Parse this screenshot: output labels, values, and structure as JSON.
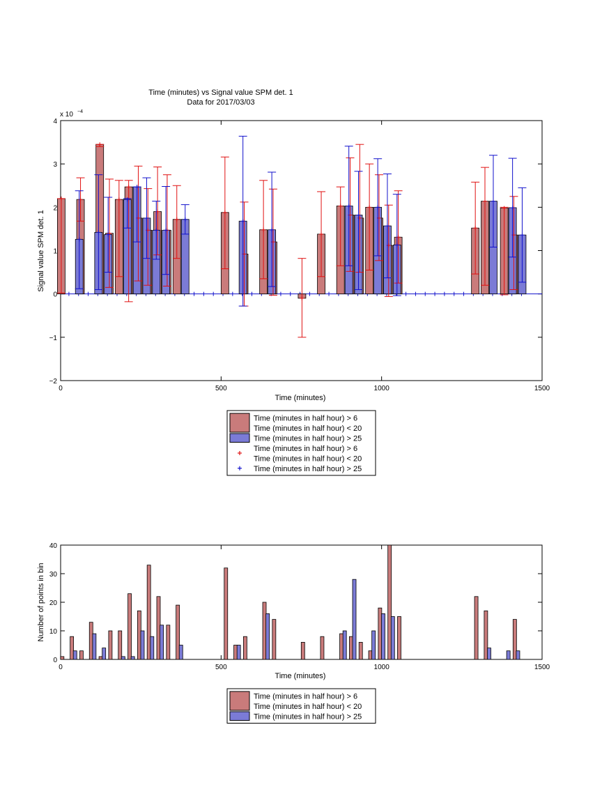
{
  "colors": {
    "red_fill": "#c97b7b",
    "blue_fill": "#7b7bd6",
    "red_line": "#e01010",
    "blue_line": "#1010cc",
    "axis": "#000000"
  },
  "chart_data": [
    {
      "type": "bar",
      "title": "Time (minutes) vs Signal value SPM det. 1",
      "subtitle": "Data for 2017/03/03",
      "xlabel": "Time (minutes)",
      "ylabel": "Signal value SPM det. 1",
      "exponent_label": "x 10",
      "exponent_power": "−4",
      "xlim": [
        0,
        1500
      ],
      "ylim": [
        -2,
        4
      ],
      "xticks": [
        0,
        500,
        1000,
        1500
      ],
      "yticks": [
        -2,
        -1,
        0,
        1,
        2,
        3,
        4
      ],
      "ytick_labels": [
        "−2",
        "−1",
        "0",
        "1",
        "2",
        "3",
        "4"
      ],
      "series": [
        {
          "name": "Time (minutes in half hour) > 6\nTime (minutes in half hour) < 20",
          "color": "#c97b7b",
          "points": [
            {
              "x": 15,
              "y": 2.2,
              "lo": 0.02,
              "hi": 2.2
            },
            {
              "x": 75,
              "y": 2.18,
              "lo": 1.68,
              "hi": 2.68
            },
            {
              "x": 135,
              "y": 3.45,
              "lo": 3.4,
              "hi": 3.45
            },
            {
              "x": 165,
              "y": 1.4,
              "lo": 0.15,
              "hi": 2.65
            },
            {
              "x": 195,
              "y": 2.18,
              "lo": 0.4,
              "hi": 2.62
            },
            {
              "x": 225,
              "y": 2.47,
              "lo": -0.18,
              "hi": 2.62
            },
            {
              "x": 255,
              "y": 1.75,
              "lo": 0.3,
              "hi": 2.95
            },
            {
              "x": 285,
              "y": 1.47,
              "lo": 0.2,
              "hi": 2.43
            },
            {
              "x": 315,
              "y": 1.9,
              "lo": 0.9,
              "hi": 2.93
            },
            {
              "x": 345,
              "y": 1.47,
              "lo": 0.18,
              "hi": 2.75
            },
            {
              "x": 375,
              "y": 1.72,
              "lo": 0.82,
              "hi": 2.5
            },
            {
              "x": 525,
              "y": 1.88,
              "lo": 0.58,
              "hi": 3.16
            },
            {
              "x": 585,
              "y": 0.92,
              "lo": -0.28,
              "hi": 2.12
            },
            {
              "x": 645,
              "y": 1.48,
              "lo": 0.35,
              "hi": 2.62
            },
            {
              "x": 675,
              "y": 1.2,
              "lo": -0.03,
              "hi": 2.42
            },
            {
              "x": 765,
              "y": -0.1,
              "lo": -1.0,
              "hi": 0.82
            },
            {
              "x": 825,
              "y": 1.38,
              "lo": 0.4,
              "hi": 2.36
            },
            {
              "x": 885,
              "y": 2.03,
              "lo": 0.65,
              "hi": 2.47
            },
            {
              "x": 915,
              "y": 1.82,
              "lo": 0.52,
              "hi": 3.14
            },
            {
              "x": 945,
              "y": 1.75,
              "lo": 0.5,
              "hi": 3.45
            },
            {
              "x": 975,
              "y": 2.0,
              "lo": 0.55,
              "hi": 3.0
            },
            {
              "x": 1005,
              "y": 1.75,
              "lo": 0.77,
              "hi": 2.75
            },
            {
              "x": 1035,
              "y": 1.12,
              "lo": -0.06,
              "hi": 2.05
            },
            {
              "x": 1065,
              "y": 1.31,
              "lo": 0.25,
              "hi": 2.38
            },
            {
              "x": 1305,
              "y": 1.52,
              "lo": 0.46,
              "hi": 2.58
            },
            {
              "x": 1335,
              "y": 2.14,
              "lo": 0.2,
              "hi": 2.92
            },
            {
              "x": 1395,
              "y": 1.98,
              "lo": -0.02,
              "hi": 2.0
            },
            {
              "x": 1425,
              "y": 1.36,
              "lo": 0.1,
              "hi": 2.25
            }
          ]
        },
        {
          "name": "Time (minutes in half hour) > 25",
          "color": "#7b7bd6",
          "points": [
            {
              "x": 45,
              "y": 1.26,
              "lo": 0.12,
              "hi": 2.38
            },
            {
              "x": 105,
              "y": 1.42,
              "lo": 0.1,
              "hi": 2.75
            },
            {
              "x": 135,
              "y": 1.37,
              "lo": 0.5,
              "hi": 2.23
            },
            {
              "x": 195,
              "y": 2.18,
              "lo": 1.52,
              "hi": 2.2
            },
            {
              "x": 225,
              "y": 2.47,
              "lo": 1.2,
              "hi": 2.47
            },
            {
              "x": 255,
              "y": 1.75,
              "lo": 0.82,
              "hi": 2.68
            },
            {
              "x": 285,
              "y": 1.47,
              "lo": 0.8,
              "hi": 2.14
            },
            {
              "x": 315,
              "y": 1.47,
              "lo": 0.45,
              "hi": 2.48
            },
            {
              "x": 375,
              "y": 1.72,
              "lo": 1.38,
              "hi": 2.06
            },
            {
              "x": 555,
              "y": 1.68,
              "lo": -0.28,
              "hi": 3.64
            },
            {
              "x": 645,
              "y": 1.48,
              "lo": 0.17,
              "hi": 2.81
            },
            {
              "x": 885,
              "y": 2.03,
              "lo": 0.65,
              "hi": 3.41
            },
            {
              "x": 915,
              "y": 1.82,
              "lo": 0.1,
              "hi": 2.83
            },
            {
              "x": 975,
              "y": 2.0,
              "lo": 0.88,
              "hi": 3.12
            },
            {
              "x": 1005,
              "y": 1.57,
              "lo": 0.37,
              "hi": 2.77
            },
            {
              "x": 1035,
              "y": 1.13,
              "lo": -0.04,
              "hi": 2.3
            },
            {
              "x": 1335,
              "y": 2.14,
              "lo": 1.08,
              "hi": 3.2
            },
            {
              "x": 1395,
              "y": 1.99,
              "lo": 0.85,
              "hi": 3.13
            },
            {
              "x": 1425,
              "y": 1.36,
              "lo": 0.27,
              "hi": 2.45
            }
          ]
        }
      ],
      "zero_markers_red_x": [
        15,
        45,
        75,
        105,
        135,
        165,
        195,
        225,
        255,
        285,
        315,
        345,
        375,
        405,
        435,
        465,
        495,
        525,
        555,
        585,
        615,
        645,
        675,
        705,
        735,
        765,
        795,
        825,
        855,
        885,
        915,
        945,
        975,
        1005,
        1035,
        1065,
        1095,
        1125,
        1155,
        1185,
        1215,
        1245,
        1275,
        1305,
        1335,
        1365,
        1395,
        1425
      ],
      "zero_markers_blue_x": [
        15,
        45,
        75,
        105,
        135,
        165,
        195,
        225,
        255,
        285,
        315,
        345,
        375,
        405,
        435,
        465,
        495,
        525,
        555,
        585,
        615,
        645,
        675,
        705,
        735,
        765,
        795,
        825,
        855,
        885,
        915,
        945,
        975,
        1005,
        1035,
        1065,
        1095,
        1125,
        1155,
        1185,
        1215,
        1245,
        1275,
        1305,
        1335,
        1365,
        1395,
        1425
      ],
      "legend": {
        "placement": "below",
        "entries": [
          {
            "kind": "bar",
            "color": "#c97b7b",
            "lines": [
              "Time (minutes in half hour) > 6",
              "Time (minutes in half hour) < 20"
            ]
          },
          {
            "kind": "bar",
            "color": "#7b7bd6",
            "lines": [
              "Time (minutes in half hour) > 25"
            ]
          },
          {
            "kind": "marker",
            "color": "#e01010",
            "lines": [
              "Time (minutes in half hour) > 6",
              "Time (minutes in half hour) < 20"
            ]
          },
          {
            "kind": "marker",
            "color": "#1010cc",
            "lines": [
              "Time (minutes in half hour) > 25"
            ]
          }
        ]
      }
    },
    {
      "type": "bar",
      "title": "",
      "xlabel": "Time (minutes)",
      "ylabel": "Number of points in bin",
      "xlim": [
        0,
        1500
      ],
      "ylim": [
        0,
        40
      ],
      "xticks": [
        0,
        500,
        1000,
        1500
      ],
      "yticks": [
        0,
        10,
        20,
        30,
        40
      ],
      "series": [
        {
          "name": "Time (minutes in half hour) > 6\nTime (minutes in half hour) < 20",
          "color": "#c97b7b",
          "points": [
            {
              "x": 5,
              "y": 1
            },
            {
              "x": 35,
              "y": 8
            },
            {
              "x": 65,
              "y": 3
            },
            {
              "x": 95,
              "y": 13
            },
            {
              "x": 125,
              "y": 1
            },
            {
              "x": 155,
              "y": 10
            },
            {
              "x": 185,
              "y": 10
            },
            {
              "x": 215,
              "y": 23
            },
            {
              "x": 245,
              "y": 17
            },
            {
              "x": 275,
              "y": 33
            },
            {
              "x": 305,
              "y": 22
            },
            {
              "x": 335,
              "y": 12
            },
            {
              "x": 365,
              "y": 19
            },
            {
              "x": 515,
              "y": 32
            },
            {
              "x": 545,
              "y": 5
            },
            {
              "x": 575,
              "y": 8
            },
            {
              "x": 635,
              "y": 20
            },
            {
              "x": 665,
              "y": 14
            },
            {
              "x": 755,
              "y": 6
            },
            {
              "x": 815,
              "y": 8
            },
            {
              "x": 875,
              "y": 9
            },
            {
              "x": 905,
              "y": 8
            },
            {
              "x": 935,
              "y": 6
            },
            {
              "x": 965,
              "y": 3
            },
            {
              "x": 995,
              "y": 18
            },
            {
              "x": 1025,
              "y": 40
            },
            {
              "x": 1055,
              "y": 15
            },
            {
              "x": 1295,
              "y": 22
            },
            {
              "x": 1325,
              "y": 17
            },
            {
              "x": 1415,
              "y": 14
            }
          ]
        },
        {
          "name": "Time (minutes in half hour) > 25",
          "color": "#7b7bd6",
          "points": [
            {
              "x": 45,
              "y": 3
            },
            {
              "x": 105,
              "y": 9
            },
            {
              "x": 135,
              "y": 4
            },
            {
              "x": 195,
              "y": 1
            },
            {
              "x": 225,
              "y": 1
            },
            {
              "x": 255,
              "y": 10
            },
            {
              "x": 285,
              "y": 8
            },
            {
              "x": 315,
              "y": 12
            },
            {
              "x": 375,
              "y": 5
            },
            {
              "x": 555,
              "y": 5
            },
            {
              "x": 645,
              "y": 16
            },
            {
              "x": 885,
              "y": 10
            },
            {
              "x": 915,
              "y": 28
            },
            {
              "x": 975,
              "y": 10
            },
            {
              "x": 1005,
              "y": 16
            },
            {
              "x": 1035,
              "y": 15
            },
            {
              "x": 1335,
              "y": 4
            },
            {
              "x": 1395,
              "y": 3
            },
            {
              "x": 1425,
              "y": 3
            }
          ]
        }
      ],
      "legend": {
        "placement": "below",
        "entries": [
          {
            "kind": "bar",
            "color": "#c97b7b",
            "lines": [
              "Time (minutes in half hour) > 6",
              "Time (minutes in half hour) < 20"
            ]
          },
          {
            "kind": "bar",
            "color": "#7b7bd6",
            "lines": [
              "Time (minutes in half hour) > 25"
            ]
          }
        ]
      }
    }
  ]
}
